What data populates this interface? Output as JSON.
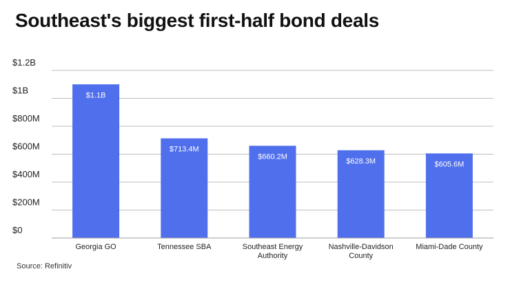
{
  "title": "Southeast's biggest first-half bond deals",
  "source": "Source: Refinitiv",
  "colors": {
    "bar": "#4f6fec",
    "grid": "#bdbdbd",
    "axis": "#9e9e9e",
    "label_on_bar": "#ffffff",
    "text": "#222222"
  },
  "chart_data": {
    "type": "bar",
    "title": "Southeast's biggest first-half bond deals",
    "xlabel": "",
    "ylabel": "",
    "categories": [
      [
        "Georgia GO"
      ],
      [
        "Tennessee SBA"
      ],
      [
        "Southeast Energy",
        "Authority"
      ],
      [
        "Nashville-Davidson",
        "County"
      ],
      [
        "Miami-Dade County"
      ]
    ],
    "values": [
      1.1,
      0.7134,
      0.6602,
      0.6283,
      0.6056
    ],
    "data_labels": [
      "$1.1B",
      "$713.4M",
      "$660.2M",
      "$628.3M",
      "$605.6M"
    ],
    "unit": "USD billions",
    "ylim": [
      0,
      1.2
    ],
    "yticks": [
      {
        "value": 0,
        "label": "$0"
      },
      {
        "value": 0.2,
        "label": "$200M"
      },
      {
        "value": 0.4,
        "label": "$400M"
      },
      {
        "value": 0.6,
        "label": "$600M"
      },
      {
        "value": 0.8,
        "label": "$800M"
      },
      {
        "value": 1.0,
        "label": "$1B"
      },
      {
        "value": 1.2,
        "label": "$1.2B"
      }
    ],
    "grid": true,
    "legend": "none"
  }
}
